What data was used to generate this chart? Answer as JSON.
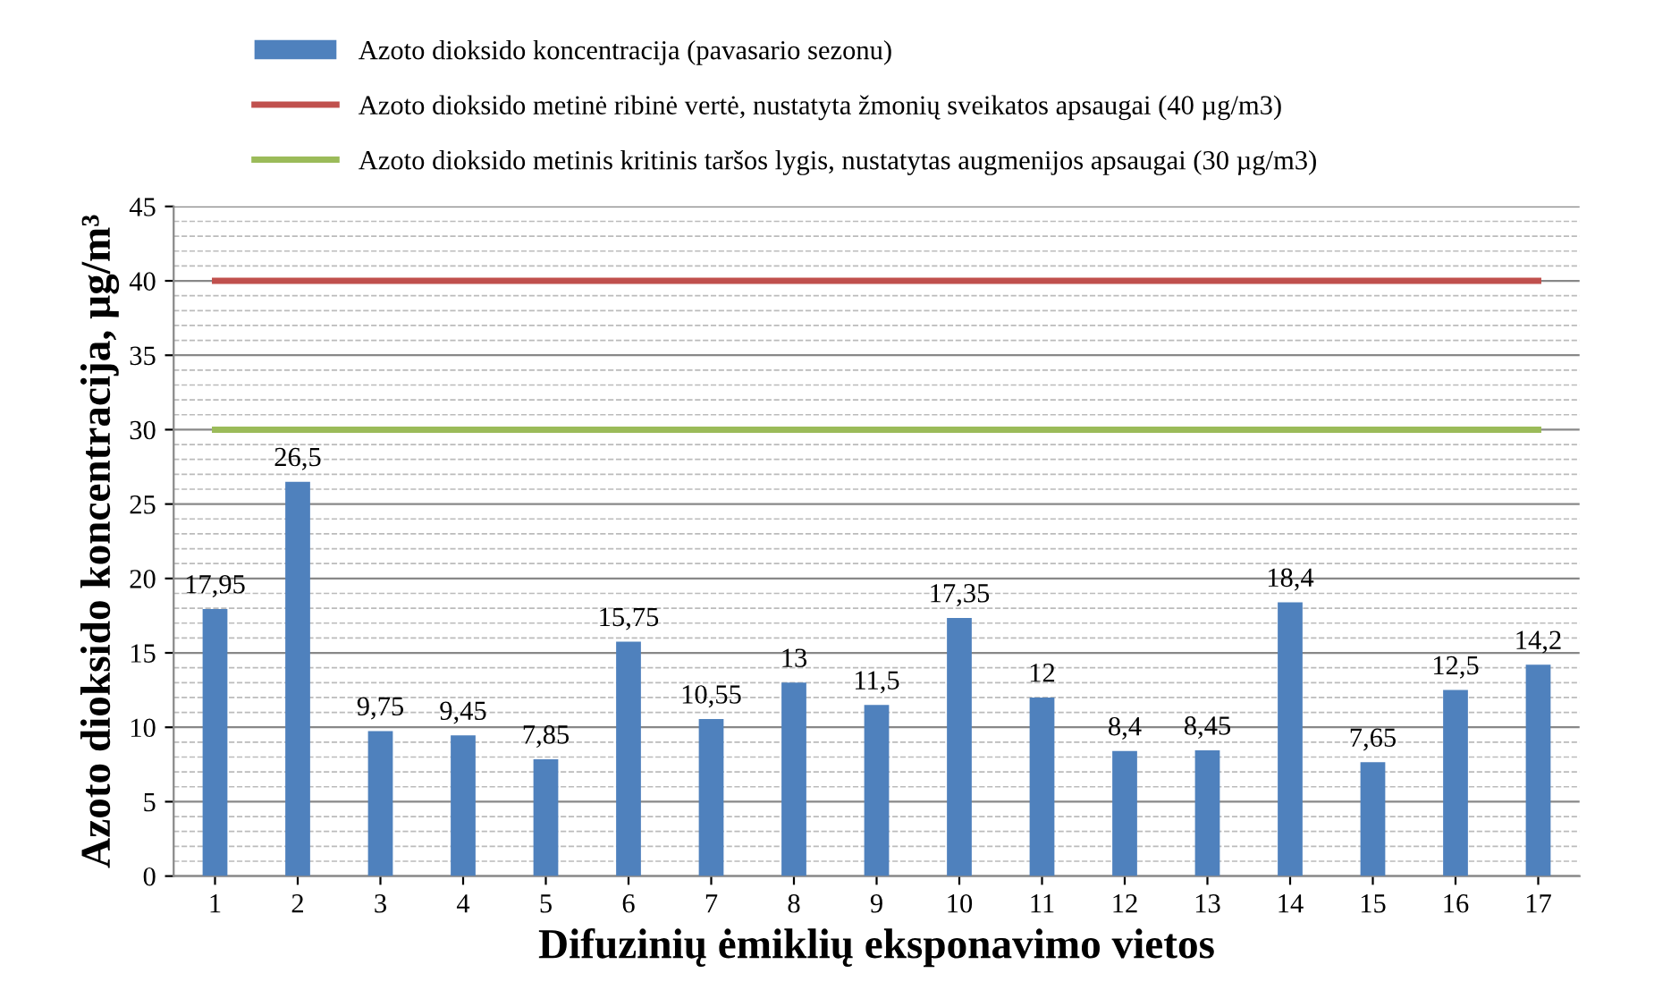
{
  "chart_data": {
    "type": "bar",
    "xlabel": "Difuzinių ėmiklių eksponavimo vietos",
    "ylabel": "Azoto dioksido koncentracija, µg/m³",
    "categories": [
      "1",
      "2",
      "3",
      "4",
      "5",
      "6",
      "7",
      "8",
      "9",
      "10",
      "11",
      "12",
      "13",
      "14",
      "15",
      "16",
      "17"
    ],
    "series": [
      {
        "name": "Azoto dioksido koncentracija (pavasario sezonu)",
        "color": "#4f81bd",
        "values": [
          17.95,
          26.5,
          9.75,
          9.45,
          7.85,
          15.75,
          10.55,
          13,
          11.5,
          17.35,
          12,
          8.4,
          8.45,
          18.4,
          7.65,
          12.5,
          14.2
        ],
        "value_labels": [
          "17,95",
          "26,5",
          "9,75",
          "9,45",
          "7,85",
          "15,75",
          "10,55",
          "13",
          "11,5",
          "17,35",
          "12",
          "8,4",
          "8,45",
          "18,4",
          "7,65",
          "12,5",
          "14,2"
        ]
      },
      {
        "name": "Azoto dioksido metinė ribinė vertė, nustatyta žmonių sveikatos apsaugai (40 µg/m3)",
        "type": "line",
        "color": "#c0504d",
        "values": [
          40,
          40,
          40,
          40,
          40,
          40,
          40,
          40,
          40,
          40,
          40,
          40,
          40,
          40,
          40,
          40,
          40
        ]
      },
      {
        "name": "Azoto dioksido metinis kritinis taršos lygis, nustatytas augmenijos apsaugai (30 µg/m3)",
        "type": "line",
        "color": "#9bbb59",
        "values": [
          30,
          30,
          30,
          30,
          30,
          30,
          30,
          30,
          30,
          30,
          30,
          30,
          30,
          30,
          30,
          30,
          30
        ]
      }
    ],
    "ylim": [
      0,
      45
    ],
    "yticks": [
      0,
      5,
      10,
      15,
      20,
      25,
      30,
      35,
      40,
      45
    ],
    "grid": "y",
    "legend": "top"
  }
}
